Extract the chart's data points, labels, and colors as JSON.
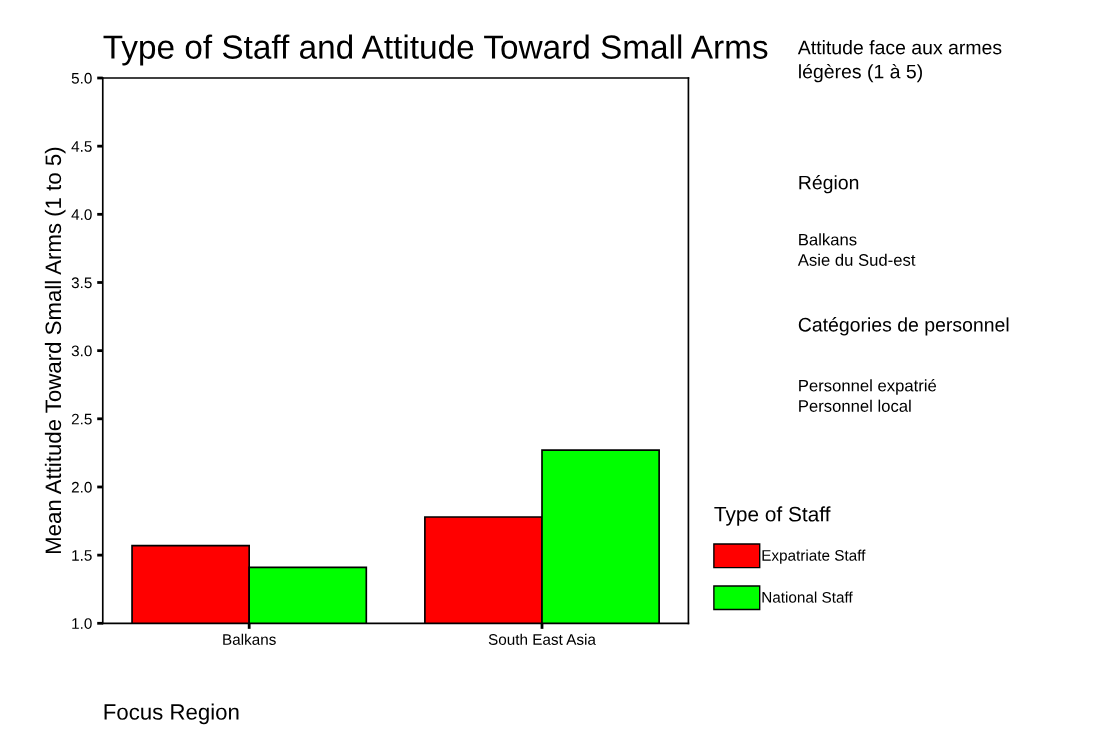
{
  "chart_data": {
    "type": "bar",
    "title": "Type of Staff and Attitude Toward Small Arms",
    "xlabel": "Focus Region",
    "ylabel": "Mean Attitude Toward Small Arms (1 to 5)",
    "legend_title": "Type of Staff",
    "categories": [
      "Balkans",
      "South East Asia"
    ],
    "series": [
      {
        "name": "Expatriate Staff",
        "color": "#ff0000",
        "values": [
          1.57,
          1.78
        ]
      },
      {
        "name": "National Staff",
        "color": "#00ff00",
        "values": [
          1.41,
          2.27
        ]
      }
    ],
    "ylim": [
      1.0,
      5.0
    ],
    "yticks": [
      {
        "value": 1.0,
        "label": "1.0"
      },
      {
        "value": 1.5,
        "label": "1.5"
      },
      {
        "value": 2.0,
        "label": "2.0"
      },
      {
        "value": 2.5,
        "label": "2.5"
      },
      {
        "value": 3.0,
        "label": "3.0"
      },
      {
        "value": 3.5,
        "label": "3.5"
      },
      {
        "value": 4.0,
        "label": "4.0"
      },
      {
        "value": 4.5,
        "label": "4.5"
      },
      {
        "value": 5.0,
        "label": "5.0"
      }
    ],
    "grid": false,
    "legend": "right",
    "annotations": [
      "Attitude face aux armes\nlégères (1 à 5)",
      "Région",
      "Balkans\nAsie du Sud-est",
      "Catégories de personnel",
      "Personnel expatrié\nPersonnel local"
    ]
  }
}
